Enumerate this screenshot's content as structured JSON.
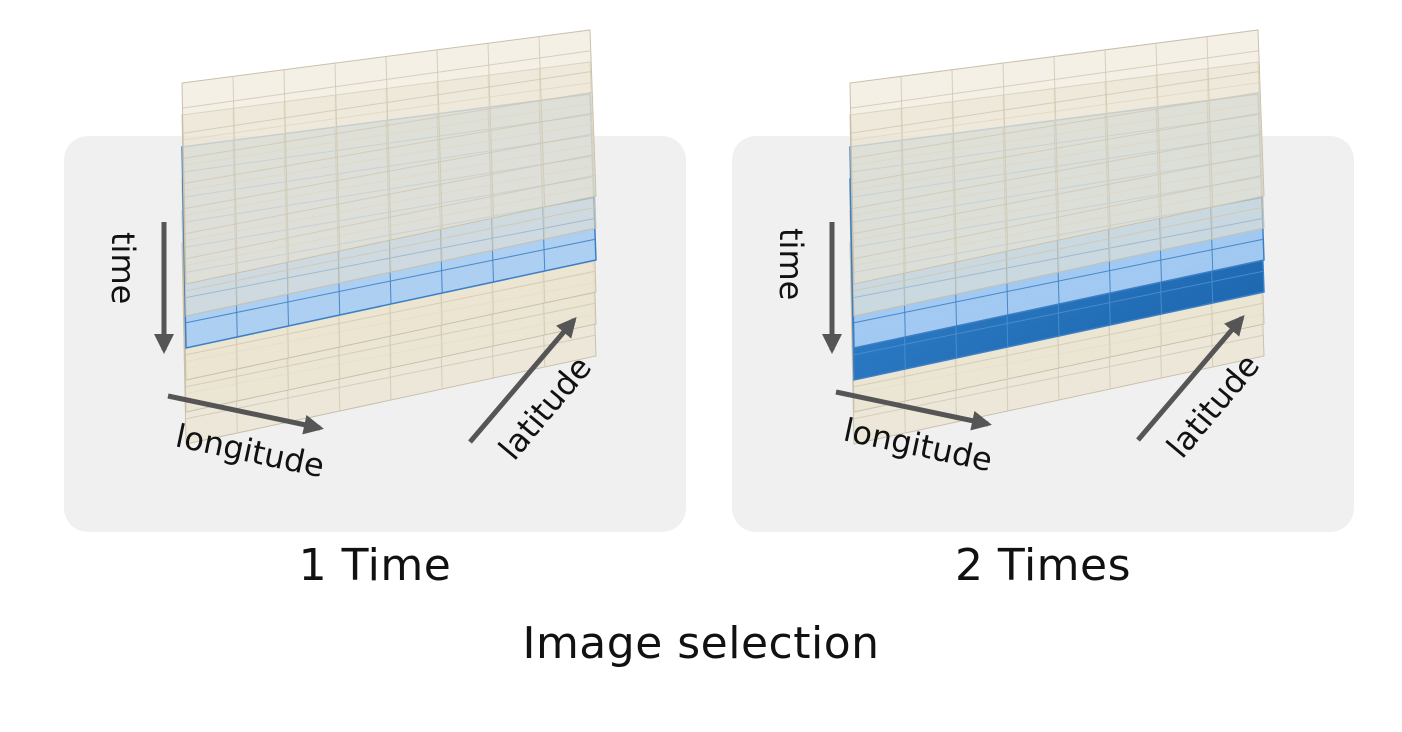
{
  "axes": {
    "time": "time",
    "longitude": "longitude",
    "latitude": "latitude"
  },
  "panels": [
    {
      "caption": "1 Time",
      "layer_count": 6,
      "selected_layers": [
        2
      ],
      "grid_cells": 8
    },
    {
      "caption": "2 Times",
      "layer_count": 6,
      "selected_layers": [
        2,
        3
      ],
      "grid_cells": 8
    }
  ],
  "caption": "Image selection",
  "colors": {
    "panel_background": "#f0f0f0",
    "unselected_layer": "#ebe4d2",
    "selected_layer": "#a9cdf3",
    "selected_layer_dark": "#1769b7",
    "arrow": "#555555"
  }
}
